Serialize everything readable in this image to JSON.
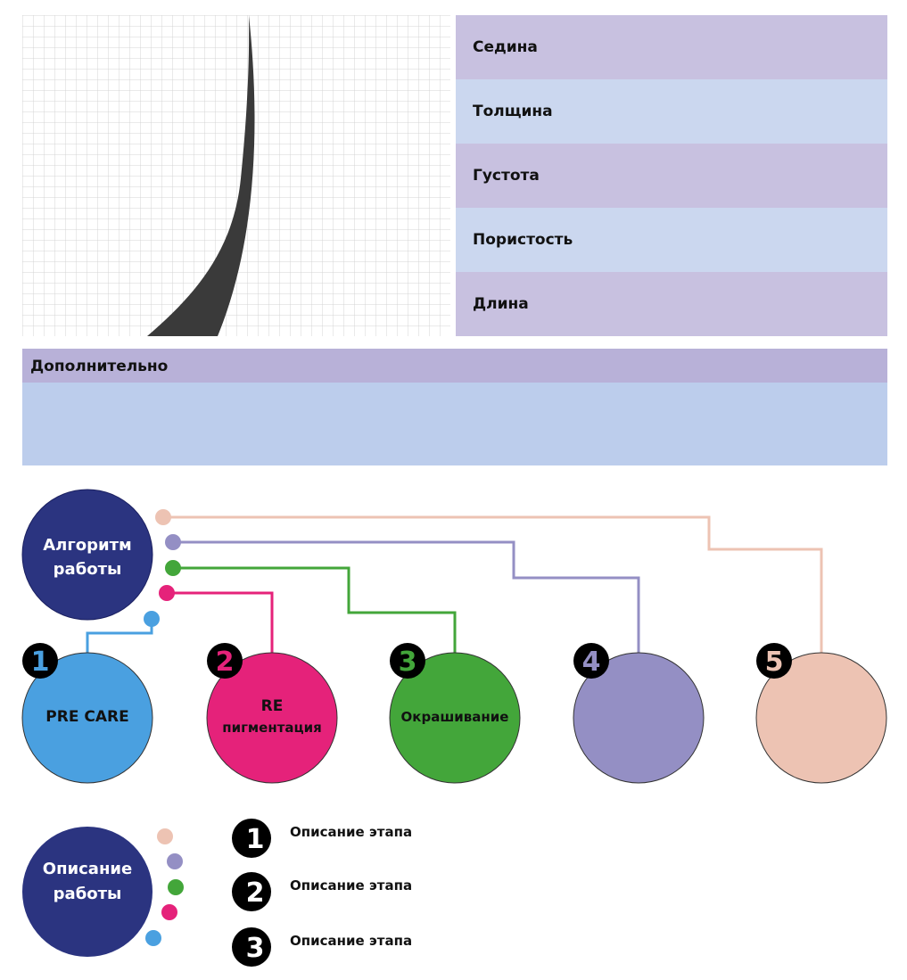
{
  "hair_params": [
    {
      "label": "Седина",
      "color": "#c8c1e0"
    },
    {
      "label": "Толщина",
      "color": "#cbd7ef"
    },
    {
      "label": "Густота",
      "color": "#c8c1e0"
    },
    {
      "label": "Пористость",
      "color": "#cbd7ef"
    },
    {
      "label": "Длина",
      "color": "#c8c1e0"
    }
  ],
  "additional": {
    "title": "Дополнительно",
    "header_color": "#b8b1d8",
    "body_color": "#bccdec"
  },
  "algorithm": {
    "title_line1": "Алгоритм",
    "title_line2": "работы",
    "color": "#2b3480",
    "stages": [
      {
        "number": "1",
        "line1": "PRE CARE",
        "line2": "",
        "color": "#4aa0e0"
      },
      {
        "number": "2",
        "line1": "RE",
        "line2": "пигментация",
        "color": "#e5227a"
      },
      {
        "number": "3",
        "line1": "Окрашивание",
        "line2": "",
        "color": "#43a63a"
      },
      {
        "number": "4",
        "line1": "",
        "line2": "",
        "color": "#948fc4"
      },
      {
        "number": "5",
        "line1": "",
        "line2": "",
        "color": "#edc3b3"
      }
    ]
  },
  "description": {
    "title_line1": "Описание",
    "title_line2": "работы",
    "items": [
      {
        "number": "1",
        "text": "Описание этапа"
      },
      {
        "number": "2",
        "text": "Описание этапа"
      },
      {
        "number": "3",
        "text": "Описание этапа"
      }
    ]
  }
}
